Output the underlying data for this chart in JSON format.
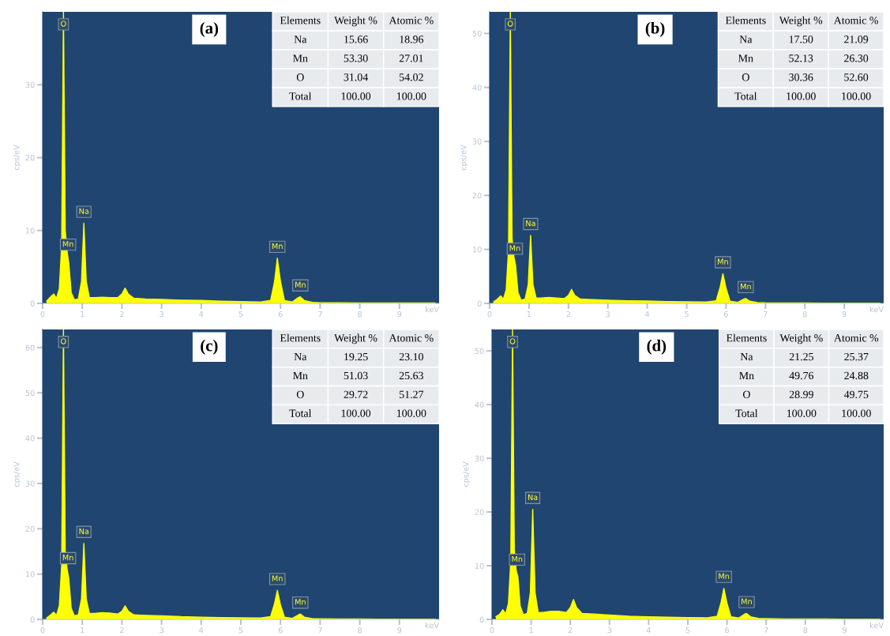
{
  "chart_data": [
    {
      "type": "area",
      "title": "(a)",
      "xlabel": "keV",
      "ylabel": "cps/eV",
      "xlim": [
        0,
        10
      ],
      "ylim": [
        0,
        40
      ],
      "xticks": [
        0,
        1,
        2,
        3,
        4,
        5,
        6,
        7,
        8,
        9
      ],
      "yticks": [
        0,
        10,
        20,
        30
      ],
      "grid": false,
      "legend": false,
      "x": [
        0.1,
        0.2,
        0.28,
        0.35,
        0.42,
        0.48,
        0.525,
        0.57,
        0.62,
        0.66,
        0.72,
        0.8,
        0.9,
        0.98,
        1.04,
        1.1,
        1.18,
        1.3,
        1.5,
        1.7,
        1.9,
        2.0,
        2.08,
        2.16,
        2.3,
        2.6,
        3,
        3.5,
        4,
        4.5,
        5,
        5.5,
        5.75,
        5.85,
        5.92,
        6.0,
        6.1,
        6.3,
        6.45,
        6.5,
        6.6,
        6.8,
        7,
        7.5,
        8,
        8.5,
        9,
        9.5,
        9.9
      ],
      "series": [
        {
          "color": "#ffff00",
          "values": [
            0.3,
            0.9,
            1.3,
            0.7,
            2,
            8,
            40,
            10,
            7,
            5.5,
            1.5,
            0.5,
            0.6,
            3,
            11,
            3,
            0.8,
            0.8,
            0.85,
            0.8,
            0.8,
            1.3,
            2.1,
            1.3,
            0.7,
            0.6,
            0.55,
            0.45,
            0.4,
            0.3,
            0.25,
            0.2,
            0.4,
            3,
            6.2,
            3,
            0.4,
            0.2,
            0.8,
            0.9,
            0.4,
            0.15,
            0.1,
            0.08,
            0.07,
            0.06,
            0.05,
            0.05,
            0.05
          ]
        }
      ],
      "annotations": [
        {
          "text": "O",
          "x": 0.525,
          "y": 40
        },
        {
          "text": "Mn",
          "x": 0.64,
          "y": 6.5
        },
        {
          "text": "Na",
          "x": 1.04,
          "y": 11
        },
        {
          "text": "Mn",
          "x": 5.92,
          "y": 6.2
        },
        {
          "text": "Mn",
          "x": 6.5,
          "y": 0.9
        },
        "Elements",
        "Weight %",
        "Atomic %",
        "Na",
        "15.66",
        "18.96",
        "Mn",
        "53.30",
        "27.01",
        "O",
        "31.04",
        "54.02",
        "Total",
        "100.00",
        "100.00"
      ]
    },
    {
      "type": "area",
      "title": "(b)",
      "xlabel": "keV",
      "ylabel": "cps/eV",
      "xlim": [
        0,
        10
      ],
      "ylim": [
        0,
        54
      ],
      "xticks": [
        0,
        1,
        2,
        3,
        4,
        5,
        6,
        7,
        8,
        9
      ],
      "yticks": [
        0,
        10,
        20,
        30,
        40,
        50
      ],
      "grid": false,
      "legend": false,
      "x": [
        0.1,
        0.2,
        0.28,
        0.35,
        0.42,
        0.48,
        0.525,
        0.57,
        0.62,
        0.66,
        0.72,
        0.8,
        0.9,
        0.98,
        1.04,
        1.1,
        1.18,
        1.3,
        1.5,
        1.7,
        1.9,
        2.0,
        2.08,
        2.16,
        2.3,
        2.6,
        3,
        3.5,
        4,
        4.5,
        5,
        5.5,
        5.75,
        5.85,
        5.92,
        6.0,
        6.1,
        6.3,
        6.45,
        6.5,
        6.6,
        6.8,
        7,
        7.5,
        8,
        8.5,
        9,
        9.5,
        9.9
      ],
      "series": [
        {
          "color": "#ffff00",
          "values": [
            0.3,
            0.8,
            1.4,
            0.8,
            2.5,
            10,
            54,
            12,
            8.5,
            7,
            2,
            0.6,
            0.8,
            3.5,
            12.6,
            3.5,
            1,
            1,
            1.1,
            1,
            0.9,
            1.5,
            2.6,
            1.5,
            0.8,
            0.7,
            0.6,
            0.5,
            0.45,
            0.35,
            0.3,
            0.25,
            0.5,
            3,
            5.5,
            2.8,
            0.4,
            0.2,
            0.8,
            0.9,
            0.4,
            0.15,
            0.1,
            0.08,
            0.07,
            0.06,
            0.05,
            0.05,
            0.05
          ]
        }
      ],
      "annotations": [
        {
          "text": "O",
          "x": 0.525,
          "y": 54
        },
        {
          "text": "Mn",
          "x": 0.64,
          "y": 8
        },
        {
          "text": "Na",
          "x": 1.04,
          "y": 12.6
        },
        {
          "text": "Mn",
          "x": 5.92,
          "y": 5.5
        },
        {
          "text": "Mn",
          "x": 6.5,
          "y": 0.9
        },
        "Elements",
        "Weight %",
        "Atomic %",
        "Na",
        "17.50",
        "21.09",
        "Mn",
        "52.13",
        "26.30",
        "O",
        "30.36",
        "52.60",
        "Total",
        "100.00",
        "100.00"
      ]
    },
    {
      "type": "area",
      "title": "(c)",
      "xlabel": "keV",
      "ylabel": "cps/eV",
      "xlim": [
        0,
        10
      ],
      "ylim": [
        0,
        64
      ],
      "xticks": [
        0,
        1,
        2,
        3,
        4,
        5,
        6,
        7,
        8,
        9
      ],
      "yticks": [
        0,
        10,
        20,
        30,
        40,
        50,
        60
      ],
      "grid": false,
      "legend": false,
      "x": [
        0.1,
        0.2,
        0.28,
        0.35,
        0.42,
        0.48,
        0.525,
        0.57,
        0.62,
        0.66,
        0.72,
        0.8,
        0.9,
        0.98,
        1.04,
        1.1,
        1.18,
        1.3,
        1.5,
        1.7,
        1.9,
        2.0,
        2.08,
        2.16,
        2.3,
        2.6,
        3,
        3.5,
        4,
        4.5,
        5,
        5.5,
        5.75,
        5.85,
        5.92,
        6.0,
        6.1,
        6.3,
        6.45,
        6.5,
        6.6,
        6.8,
        7,
        7.5,
        8,
        8.5,
        9,
        9.5,
        9.9
      ],
      "series": [
        {
          "color": "#ffff00",
          "values": [
            0.3,
            1,
            1.6,
            0.9,
            3,
            12,
            64,
            15,
            11,
            9,
            2.5,
            0.8,
            1,
            4.5,
            16.8,
            4.5,
            1.3,
            1.3,
            1.5,
            1.4,
            1.2,
            1.8,
            3,
            1.8,
            1,
            0.9,
            0.8,
            0.6,
            0.5,
            0.4,
            0.35,
            0.3,
            0.6,
            3.5,
            6.4,
            3.2,
            0.5,
            0.25,
            1,
            1.2,
            0.5,
            0.2,
            0.15,
            0.1,
            0.08,
            0.07,
            0.06,
            0.06,
            0.06
          ]
        }
      ],
      "annotations": [
        {
          "text": "O",
          "x": 0.525,
          "y": 64
        },
        {
          "text": "Mn",
          "x": 0.64,
          "y": 11
        },
        {
          "text": "Na",
          "x": 1.04,
          "y": 16.8
        },
        {
          "text": "Mn",
          "x": 5.92,
          "y": 6.4
        },
        {
          "text": "Mn",
          "x": 6.5,
          "y": 1.2
        },
        "Elements",
        "Weight %",
        "Atomic %",
        "Na",
        "19.25",
        "23.10",
        "Mn",
        "51.03",
        "25.63",
        "O",
        "29.72",
        "51.27",
        "Total",
        "100.00",
        "100.00"
      ]
    },
    {
      "type": "area",
      "title": "(d)",
      "xlabel": "keV",
      "ylabel": "cps/eV",
      "xlim": [
        0,
        10
      ],
      "ylim": [
        0,
        54
      ],
      "xticks": [
        0,
        1,
        2,
        3,
        4,
        5,
        6,
        7,
        8,
        9
      ],
      "yticks": [
        0,
        10,
        20,
        30,
        40,
        50
      ],
      "grid": false,
      "legend": false,
      "x": [
        0.1,
        0.2,
        0.28,
        0.35,
        0.42,
        0.48,
        0.525,
        0.57,
        0.62,
        0.66,
        0.72,
        0.8,
        0.9,
        0.98,
        1.04,
        1.1,
        1.18,
        1.3,
        1.5,
        1.7,
        1.9,
        2.0,
        2.08,
        2.16,
        2.3,
        2.6,
        3,
        3.5,
        4,
        4.5,
        5,
        5.5,
        5.75,
        5.85,
        5.92,
        6.0,
        6.1,
        6.3,
        6.45,
        6.5,
        6.6,
        6.8,
        7,
        7.5,
        8,
        8.5,
        9,
        9.5,
        9.9
      ],
      "series": [
        {
          "color": "#ffff00",
          "values": [
            0.5,
            1,
            1.8,
            1,
            3,
            11,
            54,
            13,
            9,
            8,
            2.5,
            0.9,
            1.1,
            5,
            20.5,
            5,
            1.3,
            1.3,
            1.5,
            1.5,
            1.3,
            2.2,
            3.7,
            2.2,
            1.1,
            1,
            0.8,
            0.6,
            0.5,
            0.4,
            0.35,
            0.3,
            0.6,
            3.2,
            5.8,
            3,
            0.5,
            0.25,
            1,
            1.1,
            0.5,
            0.2,
            0.15,
            0.1,
            0.08,
            0.07,
            0.06,
            0.06,
            0.06
          ]
        }
      ],
      "annotations": [
        {
          "text": "O",
          "x": 0.525,
          "y": 54
        },
        {
          "text": "Mn",
          "x": 0.64,
          "y": 9
        },
        {
          "text": "Na",
          "x": 1.04,
          "y": 20.5
        },
        {
          "text": "Mn",
          "x": 5.92,
          "y": 5.8
        },
        {
          "text": "Mn",
          "x": 6.5,
          "y": 1.1
        },
        "Elements",
        "Weight %",
        "Atomic %",
        "Na",
        "21.25",
        "25.37",
        "Mn",
        "49.76",
        "24.88",
        "O",
        "28.99",
        "49.75",
        "Total",
        "100.00",
        "100.00"
      ]
    }
  ]
}
